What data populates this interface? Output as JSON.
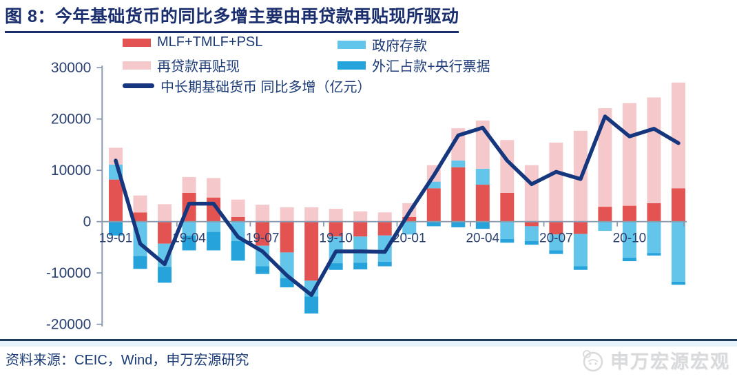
{
  "header": {
    "title": "图 8：今年基础货币的同比多增主要由再贷款再贴现所驱动"
  },
  "colors": {
    "mlf": "#e25351",
    "relending": "#f5c9cb",
    "gov": "#63c5ea",
    "fx": "#27a3dc",
    "line": "#16377e",
    "axis": "#8b9ab0",
    "tick_text": "#2b4071",
    "title_navy": "#1a2e6d"
  },
  "chart_data": {
    "type": "bar+line",
    "title": "今年基础货币的同比多增主要由再贷款再贴现所驱动",
    "unit": "亿元",
    "categories": [
      "19-01",
      "19-02",
      "19-03",
      "19-04",
      "19-05",
      "19-06",
      "19-07",
      "19-08",
      "19-09",
      "19-10",
      "19-11",
      "19-12",
      "20-01",
      "20-02",
      "20-03",
      "20-04",
      "20-05",
      "20-06",
      "20-07",
      "20-08",
      "20-09",
      "20-10",
      "20-11",
      "20-12"
    ],
    "series": [
      {
        "key": "mlf",
        "name": "MLF+TMLF+PSL",
        "values": [
          8200,
          1800,
          -4300,
          5600,
          4700,
          900,
          -4700,
          -6000,
          -11500,
          -2900,
          -2900,
          -2700,
          900,
          6500,
          10600,
          7200,
          5600,
          -900,
          -2500,
          -2400,
          2900,
          3100,
          3600,
          6500
        ]
      },
      {
        "key": "relending",
        "name": "再贷款再贴现",
        "values": [
          3300,
          3300,
          3400,
          3100,
          3800,
          3400,
          3300,
          2800,
          2800,
          2500,
          2000,
          1800,
          2700,
          3200,
          6300,
          9400,
          10300,
          11000,
          15400,
          17700,
          19200,
          20000,
          20600,
          20600
        ]
      },
      {
        "key": "gov",
        "name": "政府存款",
        "values": [
          2900,
          -6700,
          -4500,
          -2700,
          -2000,
          -3800,
          -4000,
          -5000,
          -3100,
          -5200,
          -5100,
          -5100,
          -2500,
          1300,
          1300,
          3100,
          -3400,
          -2900,
          -3100,
          -6300,
          -1800,
          -7000,
          -6100,
          -11700
        ]
      },
      {
        "key": "fx",
        "name": "外汇占款+央行票据",
        "values": [
          -2700,
          -2500,
          -3100,
          -2900,
          -3600,
          -3800,
          -1500,
          -1800,
          -3300,
          -1300,
          -1300,
          -900,
          0,
          -900,
          -1100,
          -1400,
          -700,
          -700,
          -700,
          -700,
          0,
          -700,
          -500,
          -600
        ]
      }
    ],
    "line": {
      "name": "中长期基础货币 同比多增（亿元）",
      "values": [
        11900,
        -4300,
        -8300,
        3500,
        3500,
        -3000,
        -5800,
        -10500,
        -14300,
        -5800,
        -5800,
        -5900,
        1800,
        9000,
        16800,
        18300,
        11900,
        7300,
        9700,
        8300,
        20500,
        16600,
        18100,
        15300
      ]
    },
    "stack_order_positive": [
      "mlf",
      "gov",
      "relending"
    ],
    "stack_order_negative": [
      "mlf",
      "gov",
      "fx"
    ],
    "yticks": [
      30000,
      20000,
      10000,
      0,
      -10000,
      -20000
    ],
    "ylim": [
      -20000,
      30000
    ],
    "xtick_every": 3,
    "legend_position": "top",
    "grid": false
  },
  "footer": {
    "source": "资料来源：CEIC，Wind，申万宏源研究",
    "watermark": "申万宏源宏观"
  }
}
